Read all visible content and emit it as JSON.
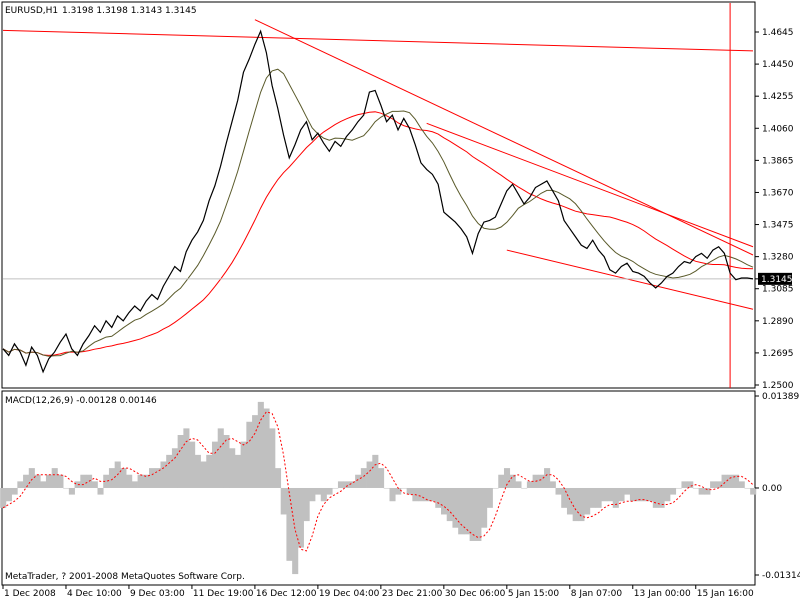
{
  "header": {
    "symbol_label": "EURUSD,H1",
    "ohlc_label": "1.3198 1.3198 1.3143 1.3145"
  },
  "indicator": {
    "label": "MACD(12,26,9) -0.00128 0.00146"
  },
  "footer": {
    "copyright": "MetaTrader, ? 2001-2008 MetaQuotes Software Corp."
  },
  "colors": {
    "background": "#ffffff",
    "price_line": "#000000",
    "trend_lines": "#ff0000",
    "ma_slow": "#ff0000",
    "ma_fast": "#5a5a2a",
    "macd_histogram": "#c0c0c0",
    "macd_signal": "#ff0000",
    "current_price_box": "#000000"
  },
  "chart_data": [
    {
      "type": "line",
      "name": "price",
      "current_price": 1.3145,
      "ylim": [
        1.25,
        1.4645
      ],
      "y_ticks": [
        "1.4645",
        "1.4450",
        "1.4255",
        "1.4060",
        "1.3865",
        "1.3670",
        "1.3475",
        "1.3280",
        "1.3145",
        "1.3085",
        "1.2890",
        "1.2695",
        "1.2500"
      ],
      "y_tick_values": [
        1.4645,
        1.445,
        1.4255,
        1.406,
        1.3865,
        1.367,
        1.3475,
        1.328,
        1.3145,
        1.3085,
        1.289,
        1.2695,
        1.25
      ],
      "x_ticks": [
        "1 Dec 2008",
        "4 Dec 10:00",
        "9 Dec 03:00",
        "11 Dec 19:00",
        "16 Dec 12:00",
        "19 Dec 04:00",
        "23 Dec 21:00",
        "30 Dec 06:00",
        "5 Jan 15:00",
        "8 Jan 07:00",
        "13 Jan 00:00",
        "15 Jan 16:00"
      ],
      "x_tick_index": [
        0,
        11,
        22,
        33,
        44,
        55,
        66,
        77,
        88,
        99,
        110,
        121
      ],
      "x_count": 132,
      "close": [
        1.272,
        1.268,
        1.275,
        1.27,
        1.262,
        1.273,
        1.268,
        1.258,
        1.266,
        1.27,
        1.276,
        1.281,
        1.272,
        1.268,
        1.275,
        1.28,
        1.286,
        1.282,
        1.289,
        1.285,
        1.292,
        1.289,
        1.294,
        1.298,
        1.295,
        1.301,
        1.305,
        1.302,
        1.31,
        1.316,
        1.322,
        1.319,
        1.331,
        1.338,
        1.343,
        1.35,
        1.362,
        1.371,
        1.383,
        1.397,
        1.41,
        1.423,
        1.44,
        1.448,
        1.457,
        1.465,
        1.452,
        1.432,
        1.418,
        1.402,
        1.388,
        1.396,
        1.405,
        1.41,
        1.399,
        1.403,
        1.397,
        1.392,
        1.398,
        1.395,
        1.401,
        1.405,
        1.41,
        1.414,
        1.428,
        1.429,
        1.42,
        1.41,
        1.414,
        1.405,
        1.412,
        1.406,
        1.396,
        1.385,
        1.381,
        1.378,
        1.372,
        1.355,
        1.352,
        1.349,
        1.345,
        1.34,
        1.33,
        1.342,
        1.349,
        1.35,
        1.352,
        1.36,
        1.368,
        1.372,
        1.366,
        1.36,
        1.364,
        1.37,
        1.372,
        1.374,
        1.368,
        1.362,
        1.35,
        1.345,
        1.34,
        1.335,
        1.333,
        1.338,
        1.332,
        1.328,
        1.32,
        1.318,
        1.322,
        1.324,
        1.319,
        1.318,
        1.316,
        1.312,
        1.309,
        1.312,
        1.316,
        1.318,
        1.322,
        1.325,
        1.324,
        1.328,
        1.33,
        1.327,
        1.332,
        1.334,
        1.33,
        1.318,
        1.314,
        1.315,
        1.315,
        1.3145
      ],
      "trend_lines": [
        {
          "from": [
            0,
            1.4655
          ],
          "to": [
            131,
            1.453
          ]
        },
        {
          "from": [
            44,
            1.472
          ],
          "to": [
            131,
            1.329
          ]
        },
        {
          "from": [
            88,
            1.332
          ],
          "to": [
            131,
            1.296
          ]
        },
        {
          "from": [
            74,
            1.409
          ],
          "to": [
            131,
            1.334
          ]
        }
      ],
      "vertical_line_index": 127
    },
    {
      "type": "bar",
      "name": "MACD(12,26,9)",
      "ylim": [
        -0.01314,
        0.01389
      ],
      "y_ticks": [
        "0.01389",
        "0.00",
        "-0.01314"
      ],
      "y_tick_values": [
        0.01389,
        0.0,
        -0.01314
      ],
      "values": [
        -0.003,
        -0.002,
        -0.001,
        0.001,
        0.002,
        0.003,
        0.002,
        0.001,
        0.002,
        0.003,
        0.002,
        0.0,
        -0.001,
        0.001,
        0.002,
        0.002,
        0.001,
        -0.001,
        0.002,
        0.003,
        0.004,
        0.003,
        0.002,
        0.001,
        0.002,
        0.002,
        0.003,
        0.003,
        0.004,
        0.005,
        0.006,
        0.008,
        0.009,
        0.007,
        0.005,
        0.004,
        0.005,
        0.007,
        0.009,
        0.008,
        0.006,
        0.005,
        0.007,
        0.01,
        0.011,
        0.013,
        0.012,
        0.009,
        0.003,
        -0.004,
        -0.011,
        -0.013,
        -0.009,
        -0.005,
        -0.002,
        -0.001,
        -0.002,
        -0.001,
        0.0,
        0.001,
        0.001,
        0.001,
        0.002,
        0.003,
        0.004,
        0.005,
        0.003,
        0.0,
        -0.002,
        -0.001,
        0.0,
        -0.001,
        -0.002,
        -0.002,
        -0.002,
        -0.002,
        -0.003,
        -0.004,
        -0.005,
        -0.006,
        -0.007,
        -0.007,
        -0.008,
        -0.008,
        -0.006,
        -0.003,
        0.0,
        0.002,
        0.003,
        0.002,
        0.001,
        0.0,
        0.001,
        0.002,
        0.002,
        0.003,
        0.001,
        -0.001,
        -0.003,
        -0.004,
        -0.005,
        -0.005,
        -0.004,
        -0.003,
        -0.003,
        -0.002,
        -0.002,
        -0.003,
        -0.002,
        -0.001,
        -0.002,
        -0.002,
        -0.002,
        -0.002,
        -0.003,
        -0.003,
        -0.002,
        -0.001,
        0.0,
        0.001,
        0.001,
        0.0,
        -0.001,
        -0.001,
        0.001,
        0.001,
        0.002,
        0.002,
        0.002,
        0.001,
        0.0,
        -0.001
      ]
    }
  ]
}
